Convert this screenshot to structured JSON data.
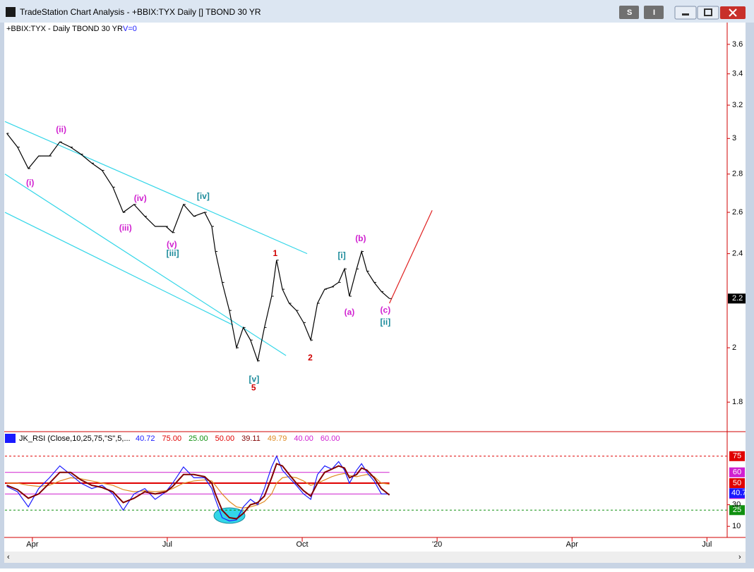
{
  "window": {
    "title": "TradeStation Chart Analysis - +BBIX:TYX Daily [] TBOND 30 YR",
    "buttons": [
      "S",
      "I"
    ]
  },
  "chart_data": [
    {
      "type": "line",
      "title": "+BBIX:TYX - Daily  TBOND 30 YR",
      "subtitle": "V=0",
      "log": true,
      "x": [
        -0.57,
        -0.33,
        -0.09,
        0.14,
        0.38,
        0.61,
        0.85,
        1.08,
        1.32,
        1.55,
        1.79,
        2.02,
        2.26,
        2.5,
        2.73,
        2.97,
        3.12,
        3.36,
        3.59,
        3.83,
        3.99,
        4.07,
        4.22,
        4.38,
        4.54,
        4.69,
        4.85,
        5.01,
        5.16,
        5.32,
        5.43,
        5.56,
        5.71,
        5.87,
        6.03,
        6.19,
        6.34,
        6.5,
        6.66,
        6.81,
        6.94,
        7.05,
        7.21,
        7.32,
        7.44,
        7.6,
        7.76,
        7.94
      ],
      "series": [
        {
          "color": "#000000",
          "values": [
            3.03,
            2.95,
            2.83,
            2.9,
            2.9,
            2.98,
            2.95,
            2.91,
            2.86,
            2.82,
            2.73,
            2.6,
            2.64,
            2.58,
            2.53,
            2.53,
            2.5,
            2.64,
            2.58,
            2.6,
            2.53,
            2.41,
            2.27,
            2.15,
            2.0,
            2.08,
            2.03,
            1.95,
            2.08,
            2.21,
            2.37,
            2.24,
            2.18,
            2.15,
            2.1,
            2.03,
            2.18,
            2.24,
            2.25,
            2.27,
            2.33,
            2.21,
            2.33,
            2.41,
            2.32,
            2.27,
            2.23,
            2.2
          ]
        }
      ],
      "ylim": [
        1.7,
        3.75
      ],
      "yticks": [
        1.8,
        2,
        2.4,
        2.6,
        2.8,
        3,
        3.2,
        3.4,
        3.6
      ],
      "last_price": 2.2,
      "xlim": [
        -0.61,
        15.45
      ],
      "xticks": [
        {
          "value": 0,
          "label": "Apr"
        },
        {
          "value": 3,
          "label": "Jul"
        },
        {
          "value": 6,
          "label": "Oct"
        },
        {
          "value": 9,
          "label": "'20"
        },
        {
          "value": 12,
          "label": "Apr"
        },
        {
          "value": 15,
          "label": "Jul"
        }
      ],
      "trendlines": [
        {
          "color": "#33d6e8",
          "x": [
            -0.61,
            6.11
          ],
          "values": [
            3.1,
            2.4
          ]
        },
        {
          "color": "#33d6e8",
          "x": [
            -0.61,
            5.64
          ],
          "values": [
            2.8,
            1.97
          ]
        },
        {
          "color": "#33d6e8",
          "x": [
            -0.61,
            4.46
          ],
          "values": [
            2.6,
            2.09
          ]
        },
        {
          "color": "#e02020",
          "x": [
            7.94,
            8.89
          ],
          "values": [
            2.18,
            2.61
          ]
        }
      ],
      "annotations": [
        {
          "text": "(ii)",
          "x": 0.64,
          "y": 3.05,
          "color": "#d020d0"
        },
        {
          "text": "(i)",
          "x": -0.05,
          "y": 2.75,
          "color": "#d020d0"
        },
        {
          "text": "(iii)",
          "x": 2.07,
          "y": 2.52,
          "color": "#d020d0"
        },
        {
          "text": "(iv)",
          "x": 2.4,
          "y": 2.67,
          "color": "#d020d0"
        },
        {
          "text": "(v)",
          "x": 3.1,
          "y": 2.44,
          "color": "#d020d0"
        },
        {
          "text": "[iii]",
          "x": 3.12,
          "y": 2.4,
          "color": "#1a8a9a"
        },
        {
          "text": "[iv]",
          "x": 3.8,
          "y": 2.68,
          "color": "#1a8a9a"
        },
        {
          "text": "1",
          "x": 5.4,
          "y": 2.4,
          "color": "#d00000"
        },
        {
          "text": "2",
          "x": 6.18,
          "y": 1.96,
          "color": "#d00000"
        },
        {
          "text": "[v]",
          "x": 4.93,
          "y": 1.88,
          "color": "#1a8a9a"
        },
        {
          "text": "5",
          "x": 4.92,
          "y": 1.85,
          "color": "#d00000"
        },
        {
          "text": "[i]",
          "x": 6.88,
          "y": 2.39,
          "color": "#1a8a9a"
        },
        {
          "text": "(b)",
          "x": 7.3,
          "y": 2.47,
          "color": "#d020d0"
        },
        {
          "text": "(a)",
          "x": 7.05,
          "y": 2.14,
          "color": "#d020d0"
        },
        {
          "text": "(c)",
          "x": 7.85,
          "y": 2.15,
          "color": "#d020d0"
        },
        {
          "text": "[ii]",
          "x": 7.85,
          "y": 2.1,
          "color": "#1a8a9a"
        }
      ]
    },
    {
      "type": "line",
      "title": "JK_RSI (Close,10,25,75,\"S\",5,...",
      "readouts": [
        {
          "text": "40.72",
          "color": "#1a1aff"
        },
        {
          "text": "75.00",
          "color": "#e00000"
        },
        {
          "text": "25.00",
          "color": "#109010"
        },
        {
          "text": "50.00",
          "color": "#e00000"
        },
        {
          "text": "39.11",
          "color": "#800000"
        },
        {
          "text": "49.79",
          "color": "#e08a20"
        },
        {
          "text": "40.00",
          "color": "#d020d0"
        },
        {
          "text": "60.00",
          "color": "#d020d0"
        }
      ],
      "series": [
        {
          "color": "#e08a20",
          "values": [
            50,
            50,
            48,
            47,
            48,
            52,
            55,
            54,
            52,
            50,
            48,
            44,
            42,
            43,
            42,
            43,
            45,
            50,
            52,
            53,
            52,
            48,
            40,
            33,
            28,
            27,
            28,
            30,
            33,
            40,
            50,
            55,
            56,
            55,
            52,
            48,
            50,
            53,
            56,
            58,
            59,
            57,
            56,
            57,
            58,
            56,
            50,
            49
          ]
        },
        {
          "color": "#1a1aff",
          "values": [
            47,
            42,
            28,
            45,
            55,
            66,
            58,
            50,
            45,
            48,
            40,
            25,
            40,
            45,
            35,
            42,
            50,
            65,
            55,
            55,
            45,
            35,
            18,
            15,
            16,
            28,
            35,
            30,
            45,
            65,
            75,
            62,
            55,
            48,
            40,
            35,
            58,
            66,
            63,
            70,
            62,
            50,
            62,
            68,
            60,
            52,
            40,
            40
          ]
        },
        {
          "color": "#800000",
          "values": [
            48,
            44,
            36,
            40,
            50,
            60,
            60,
            53,
            48,
            46,
            42,
            32,
            36,
            42,
            40,
            42,
            47,
            58,
            58,
            56,
            50,
            40,
            25,
            18,
            17,
            22,
            30,
            32,
            38,
            55,
            68,
            66,
            58,
            50,
            43,
            38,
            50,
            60,
            63,
            66,
            64,
            55,
            58,
            64,
            62,
            55,
            45,
            39
          ]
        }
      ],
      "levels": [
        {
          "value": 75,
          "color": "#e00000",
          "dash": true
        },
        {
          "value": 60,
          "color": "#d020d0",
          "dash": false
        },
        {
          "value": 50,
          "color": "#e00000",
          "dash": false
        },
        {
          "value": 40,
          "color": "#d020d0",
          "dash": false
        },
        {
          "value": 25,
          "color": "#109010",
          "dash": true
        }
      ],
      "last_value": 40.72,
      "last_value_label": "40.7",
      "ylim": [
        1,
        84
      ],
      "yticks": [
        10,
        30
      ]
    }
  ]
}
